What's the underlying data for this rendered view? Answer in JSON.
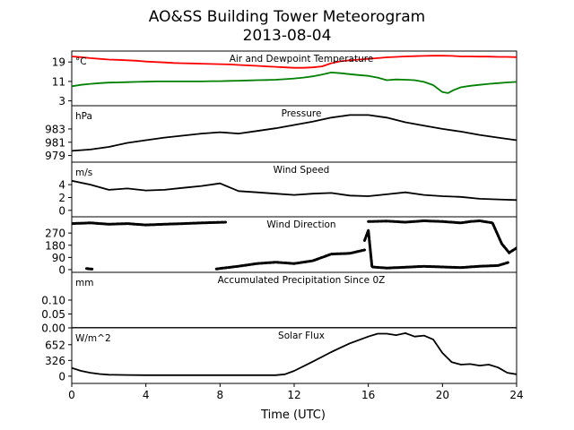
{
  "figure": {
    "title_line1": "AO&SS Building Tower Meteorogram",
    "title_line2": "2013-08-04",
    "xlabel": "Time (UTC)"
  },
  "chart_data": [
    {
      "type": "line",
      "title": "Air and Dewpoint Temperature",
      "unit": "°C",
      "ylim": [
        1,
        23.5
      ],
      "yticks": [
        3,
        11,
        19
      ],
      "series": [
        {
          "color": "#ff0000",
          "x": [
            0,
            0.5,
            1,
            1.5,
            2,
            2.5,
            3,
            3.5,
            4,
            4.5,
            5,
            5.5,
            6,
            6.5,
            7,
            7.5,
            8,
            8.5,
            9,
            9.5,
            10,
            10.5,
            11,
            11.5,
            12,
            12.5,
            13,
            13.5,
            14,
            14.5,
            15,
            15.5,
            16,
            16.5,
            17,
            17.5,
            18,
            18.5,
            19,
            19.5,
            20,
            20.5,
            21,
            21.5,
            22,
            22.5,
            23,
            23.5,
            24
          ],
          "y": [
            21.3,
            21,
            20.6,
            20.3,
            20,
            19.9,
            19.7,
            19.5,
            19.2,
            19,
            18.8,
            18.6,
            18.5,
            18.4,
            18.3,
            18.2,
            18.1,
            18,
            17.8,
            17.6,
            17.4,
            17.2,
            17,
            16.8,
            16.6,
            16.6,
            16.8,
            17.2,
            18.5,
            19.3,
            19.7,
            20,
            20.3,
            20.6,
            20.9,
            21.1,
            21.3,
            21.4,
            21.5,
            21.6,
            21.6,
            21.5,
            21.3,
            21.3,
            21.2,
            21.2,
            21.1,
            21.1,
            21
          ]
        },
        {
          "color": "#008000",
          "x": [
            0,
            0.5,
            1,
            1.5,
            2,
            2.5,
            3,
            3.5,
            4,
            4.5,
            5,
            5.5,
            6,
            6.5,
            7,
            7.5,
            8,
            8.5,
            9,
            9.5,
            10,
            10.5,
            11,
            11.5,
            12,
            12.5,
            13,
            13.5,
            14,
            14.5,
            15,
            15.5,
            16,
            16.5,
            17,
            17.5,
            18,
            18.5,
            19,
            19.5,
            20,
            20.3,
            20.6,
            21,
            21.5,
            22,
            22.5,
            23,
            23.5,
            24
          ],
          "y": [
            9,
            9.6,
            10,
            10.3,
            10.5,
            10.6,
            10.7,
            10.8,
            10.9,
            11,
            11,
            11,
            11,
            11,
            11,
            11.1,
            11.1,
            11.2,
            11.3,
            11.4,
            11.5,
            11.6,
            11.7,
            11.9,
            12.2,
            12.6,
            13.1,
            13.8,
            14.7,
            14.4,
            14,
            13.6,
            13.3,
            12.6,
            11.5,
            11.8,
            11.7,
            11.5,
            10.8,
            9.5,
            6.6,
            6.2,
            7.4,
            8.6,
            9.2,
            9.6,
            10,
            10.3,
            10.6,
            10.8
          ]
        }
      ]
    },
    {
      "type": "line",
      "title": "Pressure",
      "unit": "hPa",
      "ylim": [
        978,
        986.5
      ],
      "yticks": [
        979,
        981,
        983
      ],
      "series": [
        {
          "color": "#000000",
          "x": [
            0,
            1,
            2,
            3,
            4,
            5,
            6,
            7,
            8,
            9,
            10,
            11,
            12,
            13,
            14,
            15,
            16,
            17,
            18,
            19,
            20,
            21,
            22,
            23,
            24
          ],
          "y": [
            979.7,
            979.9,
            980.3,
            980.9,
            981.3,
            981.7,
            982,
            982.3,
            982.5,
            982.3,
            982.7,
            983.1,
            983.6,
            984.1,
            984.7,
            985.1,
            985.1,
            984.7,
            984,
            983.5,
            983,
            982.6,
            982.1,
            981.7,
            981.3
          ]
        }
      ]
    },
    {
      "type": "line",
      "title": "Wind Speed",
      "unit": "m/s",
      "ylim": [
        -1,
        7.5
      ],
      "yticks": [
        0,
        2,
        4
      ],
      "series": [
        {
          "color": "#000000",
          "x": [
            0,
            1,
            2,
            3,
            4,
            5,
            6,
            7,
            8,
            9,
            10,
            11,
            12,
            13,
            14,
            15,
            16,
            17,
            18,
            19,
            20,
            21,
            22,
            23,
            24
          ],
          "y": [
            4.6,
            4,
            3.2,
            3.4,
            3.1,
            3.2,
            3.5,
            3.8,
            4.2,
            3,
            2.8,
            2.6,
            2.4,
            2.6,
            2.7,
            2.3,
            2.2,
            2.5,
            2.8,
            2.4,
            2.2,
            2.1,
            1.8,
            1.7,
            1.6
          ]
        }
      ]
    },
    {
      "type": "scatter",
      "title": "Wind Direction",
      "ylim": [
        -20,
        390
      ],
      "yticks": [
        0,
        90,
        180,
        270
      ],
      "series": [
        {
          "color": "#000000",
          "segments": [
            {
              "x": [
                0,
                1,
                2,
                3,
                4,
                5,
                6,
                7,
                8.3
              ],
              "y": [
                340,
                345,
                335,
                340,
                330,
                335,
                340,
                345,
                350
              ]
            },
            {
              "x": [
                0.8,
                1.1
              ],
              "y": [
                8,
                4
              ]
            },
            {
              "x": [
                7.8,
                9,
                10,
                11,
                12,
                13,
                13.5,
                14,
                15,
                15.8
              ],
              "y": [
                5,
                25,
                45,
                55,
                45,
                65,
                90,
                115,
                120,
                145
              ]
            },
            {
              "x": [
                15.8,
                16,
                16.2,
                17,
                18,
                19,
                20,
                21,
                22,
                23,
                23.6
              ],
              "y": [
                215,
                290,
                20,
                12,
                18,
                24,
                20,
                15,
                25,
                30,
                55
              ]
            },
            {
              "x": [
                16,
                17,
                18,
                19,
                20,
                21,
                21.5,
                22,
                22.7,
                23.2,
                23.6,
                24
              ],
              "y": [
                355,
                358,
                350,
                360,
                355,
                345,
                355,
                360,
                345,
                190,
                125,
                160
              ]
            }
          ]
        }
      ]
    },
    {
      "type": "line",
      "title": "Accumulated Precipitation Since 0Z",
      "unit": "mm",
      "ylim": [
        0,
        0.2
      ],
      "yticks": [
        0.0,
        0.05,
        0.1
      ],
      "ytick_labels": [
        "0.00",
        "0.05",
        "0.10"
      ],
      "series": [
        {
          "color": "#000000",
          "x": [
            0,
            24
          ],
          "y": [
            0,
            0
          ]
        }
      ]
    },
    {
      "type": "line",
      "title": "Solar Flux",
      "unit": "W/m^2",
      "ylim": [
        -150,
        1000
      ],
      "yticks": [
        0,
        326,
        652
      ],
      "series": [
        {
          "color": "#000000",
          "x": [
            0,
            0.5,
            1,
            1.5,
            2,
            3,
            4,
            5,
            6,
            7,
            8,
            9,
            10,
            11,
            11.5,
            12,
            13,
            14,
            15,
            16,
            16.5,
            17,
            17.5,
            18,
            18.5,
            19,
            19.5,
            20,
            20.5,
            21,
            21.5,
            22,
            22.5,
            23,
            23.5,
            24
          ],
          "y": [
            170,
            110,
            70,
            45,
            30,
            25,
            20,
            20,
            20,
            20,
            20,
            20,
            20,
            20,
            40,
            110,
            300,
            500,
            680,
            820,
            880,
            880,
            850,
            890,
            820,
            840,
            760,
            480,
            290,
            240,
            250,
            220,
            240,
            180,
            70,
            40
          ]
        }
      ]
    }
  ],
  "xaxis": {
    "range": [
      0,
      24
    ],
    "ticks": [
      0,
      4,
      8,
      12,
      16,
      20,
      24
    ]
  }
}
